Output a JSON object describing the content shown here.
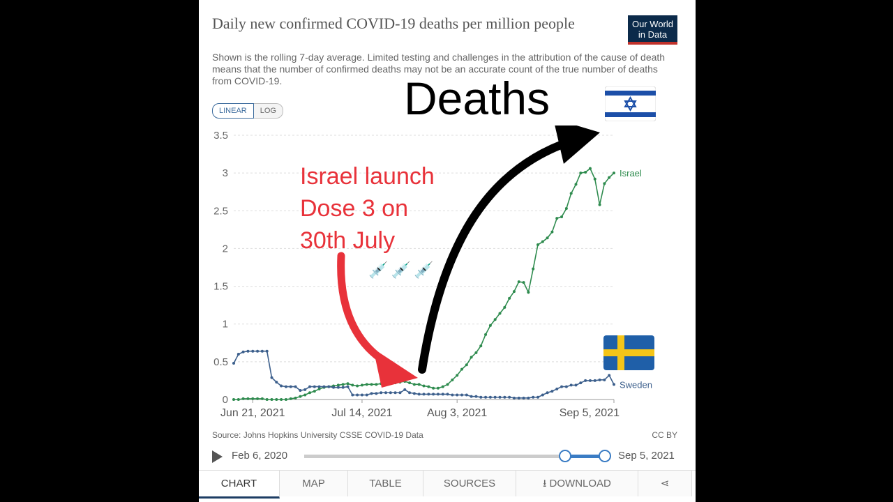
{
  "title": "Daily new confirmed COVID-19 deaths per million people",
  "subtitle": "Shown is the rolling 7-day average. Limited testing and challenges in the attribution of the cause of death means that the number of confirmed deaths may not be an accurate count of the true number of deaths from COVID-19.",
  "logo": {
    "line1": "Our World",
    "line2": "in Data"
  },
  "scale_toggle": {
    "linear": "LINEAR",
    "log": "LOG"
  },
  "annotation": {
    "line1": "Israel launch",
    "line2": "Dose 3 on",
    "line3": "30th July",
    "syringes": "💉💉💉",
    "deaths": "Deaths"
  },
  "source": "Source: Johns Hopkins University CSSE COVID-19 Data",
  "license": "CC BY",
  "timeline": {
    "start": "Feb 6, 2020",
    "end": "Sep 5, 2021"
  },
  "tabs": [
    "CHART",
    "MAP",
    "TABLE",
    "SOURCES",
    "DOWNLOAD"
  ],
  "icons": {
    "play": "play-icon",
    "download": "download-icon",
    "share": "share-icon"
  },
  "colors": {
    "israel": "#2e8b4e",
    "sweden": "#3c5f8c",
    "annotation": "#e8323a",
    "brand": "#0b2a4a"
  },
  "chart_data": {
    "type": "line",
    "x": [
      "2021-06-17",
      "2021-06-18",
      "2021-06-19",
      "2021-06-20",
      "2021-06-21",
      "2021-06-22",
      "2021-06-23",
      "2021-06-24",
      "2021-06-25",
      "2021-06-26",
      "2021-06-27",
      "2021-06-28",
      "2021-06-29",
      "2021-06-30",
      "2021-07-01",
      "2021-07-02",
      "2021-07-03",
      "2021-07-04",
      "2021-07-05",
      "2021-07-06",
      "2021-07-07",
      "2021-07-08",
      "2021-07-09",
      "2021-07-10",
      "2021-07-11",
      "2021-07-12",
      "2021-07-13",
      "2021-07-14",
      "2021-07-15",
      "2021-07-16",
      "2021-07-17",
      "2021-07-18",
      "2021-07-19",
      "2021-07-20",
      "2021-07-21",
      "2021-07-22",
      "2021-07-23",
      "2021-07-24",
      "2021-07-25",
      "2021-07-26",
      "2021-07-27",
      "2021-07-28",
      "2021-07-29",
      "2021-07-30",
      "2021-07-31",
      "2021-08-01",
      "2021-08-02",
      "2021-08-03",
      "2021-08-04",
      "2021-08-05",
      "2021-08-06",
      "2021-08-07",
      "2021-08-08",
      "2021-08-09",
      "2021-08-10",
      "2021-08-11",
      "2021-08-12",
      "2021-08-13",
      "2021-08-14",
      "2021-08-15",
      "2021-08-16",
      "2021-08-17",
      "2021-08-18",
      "2021-08-19",
      "2021-08-20",
      "2021-08-21",
      "2021-08-22",
      "2021-08-23",
      "2021-08-24",
      "2021-08-25",
      "2021-08-26",
      "2021-08-27",
      "2021-08-28",
      "2021-08-29",
      "2021-08-30",
      "2021-08-31",
      "2021-09-01",
      "2021-09-02",
      "2021-09-03",
      "2021-09-04",
      "2021-09-05"
    ],
    "series": [
      {
        "name": "Israel",
        "values": [
          0,
          0,
          0.01,
          0.01,
          0.01,
          0.01,
          0.01,
          0,
          0,
          0,
          0,
          0,
          0.01,
          0.02,
          0.04,
          0.06,
          0.09,
          0.11,
          0.14,
          0.16,
          0.17,
          0.18,
          0.19,
          0.2,
          0.21,
          0.19,
          0.18,
          0.19,
          0.2,
          0.2,
          0.2,
          0.21,
          0.21,
          0.22,
          0.22,
          0.23,
          0.24,
          0.22,
          0.2,
          0.2,
          0.18,
          0.17,
          0.15,
          0.15,
          0.17,
          0.2,
          0.26,
          0.32,
          0.4,
          0.46,
          0.56,
          0.62,
          0.71,
          0.86,
          0.98,
          1.06,
          1.14,
          1.22,
          1.34,
          1.43,
          1.56,
          1.55,
          1.42,
          1.73,
          2.05,
          2.09,
          2.14,
          2.22,
          2.4,
          2.42,
          2.53,
          2.73,
          2.85,
          3.0,
          3.01,
          3.06,
          2.92,
          2.58,
          2.86,
          2.94,
          3.0
        ]
      },
      {
        "name": "Sweden",
        "values": [
          0.48,
          0.6,
          0.63,
          0.64,
          0.64,
          0.64,
          0.64,
          0.64,
          0.29,
          0.23,
          0.18,
          0.17,
          0.17,
          0.17,
          0.12,
          0.13,
          0.17,
          0.17,
          0.17,
          0.17,
          0.17,
          0.16,
          0.16,
          0.16,
          0.17,
          0.06,
          0.06,
          0.06,
          0.06,
          0.08,
          0.08,
          0.09,
          0.09,
          0.09,
          0.09,
          0.09,
          0.13,
          0.09,
          0.08,
          0.07,
          0.07,
          0.07,
          0.07,
          0.07,
          0.07,
          0.07,
          0.06,
          0.06,
          0.06,
          0.06,
          0.04,
          0.04,
          0.03,
          0.03,
          0.03,
          0.03,
          0.03,
          0.03,
          0.03,
          0.02,
          0.02,
          0.02,
          0.02,
          0.03,
          0.03,
          0.06,
          0.09,
          0.11,
          0.14,
          0.17,
          0.17,
          0.19,
          0.19,
          0.22,
          0.25,
          0.25,
          0.25,
          0.26,
          0.26,
          0.32,
          0.2
        ]
      }
    ],
    "xticks": [
      "Jun 21, 2021",
      "Jul 14, 2021",
      "Aug 3, 2021",
      "Sep 5, 2021"
    ],
    "yticks": [
      "0",
      "0.5",
      "1",
      "1.5",
      "2",
      "2.5",
      "3",
      "3.5"
    ],
    "ylim": [
      0,
      3.5
    ],
    "grid": true,
    "legend": "line end labels"
  }
}
